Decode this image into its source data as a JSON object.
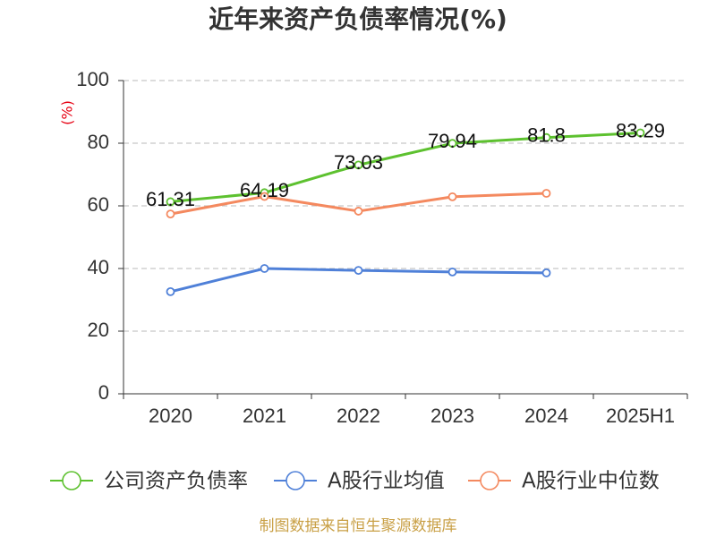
{
  "chart_data": {
    "type": "line",
    "title": "近年来资产负债率情况(%)",
    "ylabel": "(%)",
    "ylabel_color": "#e60012",
    "categories": [
      "2020",
      "2021",
      "2022",
      "2023",
      "2024",
      "2025H1"
    ],
    "ylim": [
      0,
      100
    ],
    "yticks": [
      0,
      20,
      40,
      60,
      80,
      100
    ],
    "grid": true,
    "grid_style": "dashed",
    "legend_position": "bottom",
    "series": [
      {
        "name": "公司资产负债率",
        "color": "#5dc12f",
        "show_labels": true,
        "values": [
          61.31,
          64.19,
          73.03,
          79.94,
          81.8,
          83.29
        ]
      },
      {
        "name": "A股行业均值",
        "color": "#4f80d8",
        "show_labels": false,
        "values": [
          32.6,
          40.0,
          39.4,
          38.9,
          38.6,
          null
        ]
      },
      {
        "name": "A股行业中位数",
        "color": "#f4895f",
        "show_labels": false,
        "values": [
          57.4,
          63.0,
          58.3,
          62.9,
          64.0,
          null
        ]
      }
    ]
  },
  "source_note": "制图数据来自恒生聚源数据库",
  "source_note_color": "#c9a046"
}
